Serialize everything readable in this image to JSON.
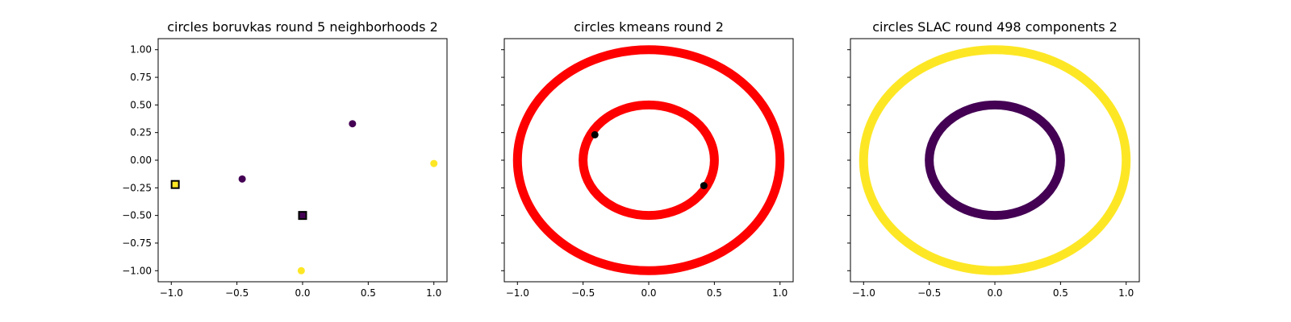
{
  "chart_data": [
    {
      "type": "scatter",
      "title": "circles boruvkas round 5 neighborhoods 2",
      "xlim": [
        -1.1,
        1.1
      ],
      "ylim": [
        -1.1,
        1.1
      ],
      "xticks": [
        -1.0,
        -0.5,
        0.0,
        0.5,
        1.0
      ],
      "xtick_labels": [
        "−1.0",
        "−0.5",
        "0.0",
        "0.5",
        "1.0"
      ],
      "yticks": [
        1.0,
        0.75,
        0.5,
        0.25,
        0.0,
        -0.25,
        -0.5,
        -0.75,
        -1.0
      ],
      "ytick_labels": [
        "1.00",
        "0.75",
        "0.50",
        "0.25",
        "0.00",
        "−0.25",
        "−0.50",
        "−0.75",
        "−1.00"
      ],
      "grid": false,
      "points": [
        {
          "x": 0.38,
          "y": 0.33,
          "group": 0
        },
        {
          "x": -0.46,
          "y": -0.17,
          "group": 0
        },
        {
          "x": 1.0,
          "y": -0.03,
          "group": 1
        },
        {
          "x": -0.01,
          "y": -1.0,
          "group": 1
        }
      ],
      "centers": [
        {
          "x": -0.97,
          "y": -0.22,
          "group": 1
        },
        {
          "x": 0.0,
          "y": -0.5,
          "group": 0
        }
      ],
      "group_colors": [
        "#440154",
        "#fde725"
      ]
    },
    {
      "type": "scatter",
      "title": "circles kmeans round 2",
      "xlim": [
        -1.1,
        1.1
      ],
      "ylim": [
        -1.1,
        1.1
      ],
      "xticks": [
        -1.0,
        -0.5,
        0.0,
        0.5,
        1.0
      ],
      "xtick_labels": [
        "−1.0",
        "−0.5",
        "0.0",
        "0.5",
        "1.0"
      ],
      "grid": false,
      "rings": [
        {
          "radius": 1.0,
          "color": "#ff0000"
        },
        {
          "radius": 0.5,
          "color": "#ff0000"
        }
      ],
      "centers": [
        {
          "x": -0.41,
          "y": 0.23,
          "color": "#000000"
        },
        {
          "x": 0.42,
          "y": -0.23,
          "color": "#000000"
        }
      ]
    },
    {
      "type": "scatter",
      "title": "circles SLAC round 498 components 2",
      "xlim": [
        -1.1,
        1.1
      ],
      "ylim": [
        -1.1,
        1.1
      ],
      "xticks": [
        -1.0,
        -0.5,
        0.0,
        0.5,
        1.0
      ],
      "xtick_labels": [
        "−1.0",
        "−0.5",
        "0.0",
        "0.5",
        "1.0"
      ],
      "grid": false,
      "rings": [
        {
          "radius": 1.0,
          "color": "#fde725"
        },
        {
          "radius": 0.5,
          "color": "#440154"
        }
      ]
    }
  ]
}
